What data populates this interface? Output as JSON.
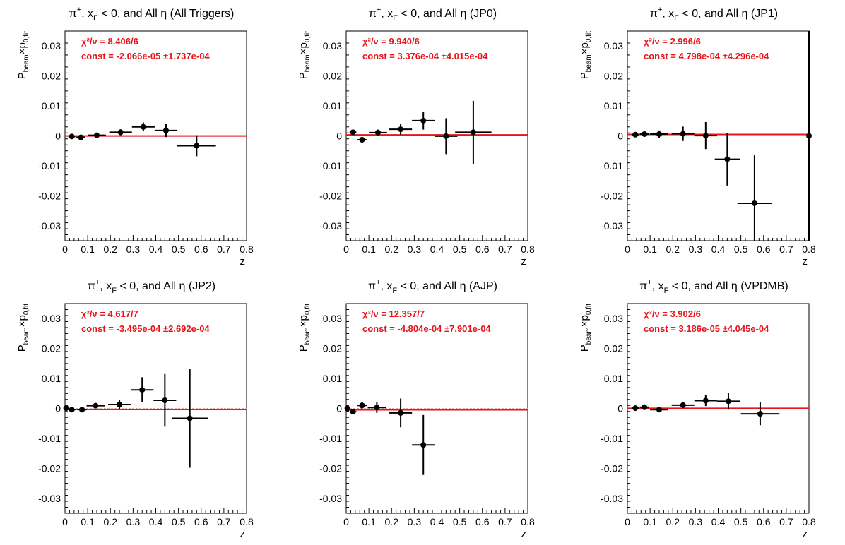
{
  "colors": {
    "fit": "#e8141b",
    "points": "#000000",
    "frame": "#000000"
  },
  "chart_data": [
    {
      "type": "scatter",
      "title_main": "π",
      "title_sup": "+",
      "title_mid": ", x",
      "title_sub": "F",
      "title_rest": " < 0, and All  η (All Triggers)",
      "xlabel": "z",
      "ylabel_main": "P",
      "ylabel_sub1": "beam",
      "ylabel_mid": "×p",
      "ylabel_sub2": "0,fit",
      "xlim": [
        0,
        0.8
      ],
      "ylim": [
        -0.035,
        0.035
      ],
      "xticks": [
        "0",
        "0.1",
        "0.2",
        "0.3",
        "0.4",
        "0.5",
        "0.6",
        "0.7",
        "0.8"
      ],
      "yticks": [
        "0.03",
        "0.02",
        "0.01",
        "0",
        "-0.01",
        "-0.02",
        "-0.03"
      ],
      "chi2_label": "χ²/ν = 8.406/6",
      "const_label": "const = -2.066e-05  ±1.737e-04",
      "fit_value": -2.066e-05,
      "points": [
        {
          "x": 0.03,
          "y": -0.0002,
          "xerr": 0.015,
          "yerr": 0.0008
        },
        {
          "x": 0.07,
          "y": -0.0005,
          "xerr": 0.02,
          "yerr": 0.0008
        },
        {
          "x": 0.14,
          "y": 0.0002,
          "xerr": 0.04,
          "yerr": 0.0008
        },
        {
          "x": 0.245,
          "y": 0.0012,
          "xerr": 0.05,
          "yerr": 0.001
        },
        {
          "x": 0.345,
          "y": 0.003,
          "xerr": 0.05,
          "yerr": 0.0015
        },
        {
          "x": 0.445,
          "y": 0.0018,
          "xerr": 0.05,
          "yerr": 0.0022
        },
        {
          "x": 0.58,
          "y": -0.0033,
          "xerr": 0.085,
          "yerr": 0.0035
        }
      ]
    },
    {
      "type": "scatter",
      "title_main": "π",
      "title_sup": "+",
      "title_mid": ", x",
      "title_sub": "F",
      "title_rest": " < 0, and All η (JP0)",
      "xlabel": "z",
      "ylabel_main": "P",
      "ylabel_sub1": "beam",
      "ylabel_mid": "×p",
      "ylabel_sub2": "0,fit",
      "xlim": [
        0,
        0.8
      ],
      "ylim": [
        -0.035,
        0.035
      ],
      "xticks": [
        "0",
        "0.1",
        "0.2",
        "0.3",
        "0.4",
        "0.5",
        "0.6",
        "0.7",
        "0.8"
      ],
      "yticks": [
        "0.03",
        "0.02",
        "0.01",
        "0",
        "-0.01",
        "-0.02",
        "-0.03"
      ],
      "chi2_label": "χ²/ν = 9.940/6",
      "const_label": "const = 3.376e-04  ±4.015e-04",
      "fit_value": 0.0003376,
      "points": [
        {
          "x": 0.03,
          "y": 0.0012,
          "xerr": 0.015,
          "yerr": 0.0006
        },
        {
          "x": 0.07,
          "y": -0.0013,
          "xerr": 0.02,
          "yerr": 0.0008
        },
        {
          "x": 0.14,
          "y": 0.0011,
          "xerr": 0.04,
          "yerr": 0.001
        },
        {
          "x": 0.24,
          "y": 0.0022,
          "xerr": 0.05,
          "yerr": 0.0018
        },
        {
          "x": 0.34,
          "y": 0.0051,
          "xerr": 0.05,
          "yerr": 0.003
        },
        {
          "x": 0.44,
          "y": -0.0001,
          "xerr": 0.05,
          "yerr": 0.006
        },
        {
          "x": 0.56,
          "y": 0.0012,
          "xerr": 0.08,
          "yerr": 0.0105
        }
      ]
    },
    {
      "type": "scatter",
      "title_main": "π",
      "title_sup": "+",
      "title_mid": ", x",
      "title_sub": "F",
      "title_rest": " < 0, and All η (JP1)",
      "xlabel": "z",
      "ylabel_main": "P",
      "ylabel_sub1": "beam",
      "ylabel_mid": "×p",
      "ylabel_sub2": "0,fit",
      "xlim": [
        0,
        0.8
      ],
      "ylim": [
        -0.035,
        0.035
      ],
      "xticks": [
        "0",
        "0.1",
        "0.2",
        "0.3",
        "0.4",
        "0.5",
        "0.6",
        "0.7",
        "0.8"
      ],
      "yticks": [
        "0.03",
        "0.02",
        "0.01",
        "0",
        "-0.01",
        "-0.02",
        "-0.03"
      ],
      "chi2_label": "χ²/ν = 2.996/6",
      "const_label": "const = 4.798e-04  ±4.296e-04",
      "fit_value": 0.0004798,
      "points": [
        {
          "x": 0.035,
          "y": 0.0004,
          "xerr": 0.015,
          "yerr": 0.0007
        },
        {
          "x": 0.075,
          "y": 0.0006,
          "xerr": 0.02,
          "yerr": 0.0008
        },
        {
          "x": 0.14,
          "y": 0.0006,
          "xerr": 0.04,
          "yerr": 0.0012
        },
        {
          "x": 0.245,
          "y": 0.0007,
          "xerr": 0.05,
          "yerr": 0.0024
        },
        {
          "x": 0.345,
          "y": 0.0001,
          "xerr": 0.05,
          "yerr": 0.0045
        },
        {
          "x": 0.44,
          "y": -0.0078,
          "xerr": 0.055,
          "yerr": 0.0088
        },
        {
          "x": 0.56,
          "y": -0.0225,
          "xerr": 0.075,
          "yerr": 0.016
        },
        {
          "x": 0.8,
          "y": 0.0,
          "xerr": 0.0,
          "yerr": 0.035
        }
      ]
    },
    {
      "type": "scatter",
      "title_main": "π",
      "title_sup": "+",
      "title_mid": ", x",
      "title_sub": "F",
      "title_rest": " < 0, and All η (JP2)",
      "xlabel": "z",
      "ylabel_main": "P",
      "ylabel_sub1": "beam",
      "ylabel_mid": "×p",
      "ylabel_sub2": "0,fit",
      "xlim": [
        0,
        0.8
      ],
      "ylim": [
        -0.035,
        0.035
      ],
      "xticks": [
        "0",
        "0.1",
        "0.2",
        "0.3",
        "0.4",
        "0.5",
        "0.6",
        "0.7",
        "0.8"
      ],
      "yticks": [
        "0.03",
        "0.02",
        "0.01",
        "0",
        "-0.01",
        "-0.02",
        "-0.03"
      ],
      "chi2_label": "χ²/ν = 4.617/7",
      "const_label": "const = -3.495e-04  ±2.692e-04",
      "fit_value": -0.0003495,
      "points": [
        {
          "x": 0.005,
          "y": 0.0001,
          "xerr": 0.01,
          "yerr": 0.0005
        },
        {
          "x": 0.03,
          "y": -0.0004,
          "xerr": 0.015,
          "yerr": 0.0006
        },
        {
          "x": 0.075,
          "y": -0.0004,
          "xerr": 0.02,
          "yerr": 0.0008
        },
        {
          "x": 0.135,
          "y": 0.0009,
          "xerr": 0.04,
          "yerr": 0.0008
        },
        {
          "x": 0.24,
          "y": 0.0013,
          "xerr": 0.05,
          "yerr": 0.0016
        },
        {
          "x": 0.34,
          "y": 0.0062,
          "xerr": 0.05,
          "yerr": 0.0042
        },
        {
          "x": 0.44,
          "y": 0.0027,
          "xerr": 0.05,
          "yerr": 0.0088
        },
        {
          "x": 0.55,
          "y": -0.0033,
          "xerr": 0.08,
          "yerr": 0.0165
        }
      ]
    },
    {
      "type": "scatter",
      "title_main": "π",
      "title_sup": "+",
      "title_mid": ", x",
      "title_sub": "F",
      "title_rest": " < 0, and All η (AJP)",
      "xlabel": "z",
      "ylabel_main": "P",
      "ylabel_sub1": "beam",
      "ylabel_mid": "×p",
      "ylabel_sub2": "0,fit",
      "xlim": [
        0,
        0.8
      ],
      "ylim": [
        -0.035,
        0.035
      ],
      "xticks": [
        "0",
        "0.1",
        "0.2",
        "0.3",
        "0.4",
        "0.5",
        "0.6",
        "0.7",
        "0.8"
      ],
      "yticks": [
        "0.03",
        "0.02",
        "0.01",
        "0",
        "-0.01",
        "-0.02",
        "-0.03"
      ],
      "chi2_label": "χ²/ν = 12.357/7",
      "const_label": "const = -4.804e-04  ±7.901e-04",
      "fit_value": -0.0004804,
      "points": [
        {
          "x": 0.005,
          "y": 0.0,
          "xerr": 0.01,
          "yerr": 0.0008
        },
        {
          "x": 0.03,
          "y": -0.0011,
          "xerr": 0.015,
          "yerr": 0.0008
        },
        {
          "x": 0.07,
          "y": 0.001,
          "xerr": 0.02,
          "yerr": 0.0012
        },
        {
          "x": 0.135,
          "y": 0.0003,
          "xerr": 0.04,
          "yerr": 0.0018
        },
        {
          "x": 0.24,
          "y": -0.0015,
          "xerr": 0.05,
          "yerr": 0.0048
        },
        {
          "x": 0.34,
          "y": -0.0122,
          "xerr": 0.05,
          "yerr": 0.01
        }
      ]
    },
    {
      "type": "scatter",
      "title_main": "π",
      "title_sup": "+",
      "title_mid": ", x",
      "title_sub": "F",
      "title_rest": " < 0, and All  η (VPDMB)",
      "xlabel": "z",
      "ylabel_main": "P",
      "ylabel_sub1": "beam",
      "ylabel_mid": "×p",
      "ylabel_sub2": "0,fit",
      "xlim": [
        0,
        0.8
      ],
      "ylim": [
        -0.035,
        0.035
      ],
      "xticks": [
        "0",
        "0.1",
        "0.2",
        "0.3",
        "0.4",
        "0.5",
        "0.6",
        "0.7",
        "0.8"
      ],
      "yticks": [
        "0.03",
        "0.02",
        "0.01",
        "0",
        "-0.01",
        "-0.02",
        "-0.03"
      ],
      "chi2_label": "χ²/ν = 3.902/6",
      "const_label": "const = 3.186e-05  ±4.045e-04",
      "fit_value": 3.186e-05,
      "points": [
        {
          "x": 0.035,
          "y": 0.0001,
          "xerr": 0.015,
          "yerr": 0.0008
        },
        {
          "x": 0.075,
          "y": 0.0004,
          "xerr": 0.02,
          "yerr": 0.0006
        },
        {
          "x": 0.14,
          "y": -0.0004,
          "xerr": 0.04,
          "yerr": 0.0008
        },
        {
          "x": 0.245,
          "y": 0.0011,
          "xerr": 0.05,
          "yerr": 0.001
        },
        {
          "x": 0.345,
          "y": 0.0026,
          "xerr": 0.05,
          "yerr": 0.0018
        },
        {
          "x": 0.445,
          "y": 0.0024,
          "xerr": 0.05,
          "yerr": 0.0028
        },
        {
          "x": 0.585,
          "y": -0.0018,
          "xerr": 0.085,
          "yerr": 0.0038
        }
      ]
    }
  ]
}
